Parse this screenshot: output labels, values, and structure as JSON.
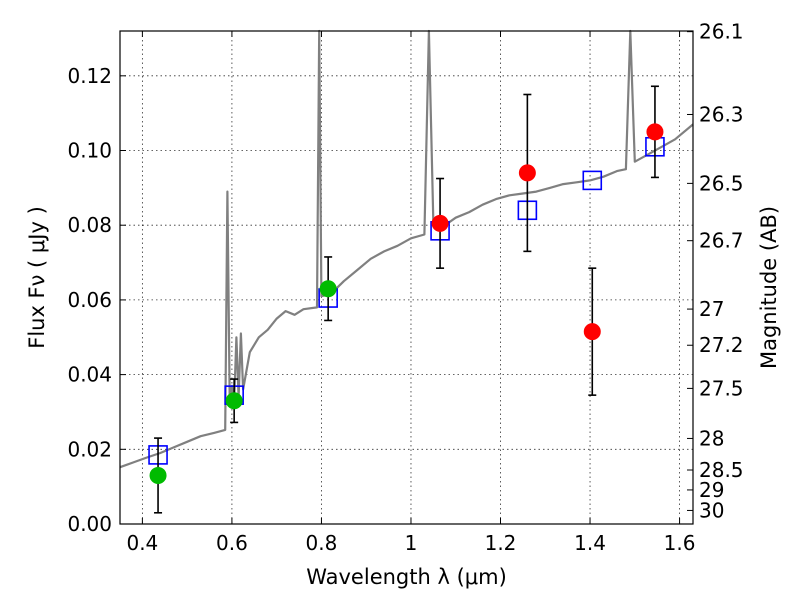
{
  "chart_data": {
    "type": "scatter",
    "title": "",
    "xlabel": "Wavelength  λ (μm)",
    "ylabel": "Flux  Fν  ( μJy )",
    "y2label": "Magnitude (AB)",
    "xlim": [
      0.35,
      1.63
    ],
    "ylim": [
      0.0,
      0.132
    ],
    "grid": true,
    "xticks": [
      0.4,
      0.6,
      0.8,
      1.0,
      1.2,
      1.4,
      1.6
    ],
    "xtick_labels": [
      "0.4",
      "0.6",
      "0.8",
      "1",
      "1.2",
      "1.4",
      "1.6"
    ],
    "yticks": [
      0.0,
      0.02,
      0.04,
      0.06,
      0.08,
      0.1,
      0.12
    ],
    "ytick_labels": [
      "0.00",
      "0.02",
      "0.04",
      "0.06",
      "0.08",
      "0.10",
      "0.12"
    ],
    "y2ticks": [
      {
        "label": "26.1",
        "mag": 26.1
      },
      {
        "label": "26.3",
        "mag": 26.3
      },
      {
        "label": "26.5",
        "mag": 26.5
      },
      {
        "label": "26.7",
        "mag": 26.7
      },
      {
        "label": "27",
        "mag": 27.0
      },
      {
        "label": "27.2",
        "mag": 27.2
      },
      {
        "label": "27.5",
        "mag": 27.5
      },
      {
        "label": "28",
        "mag": 28.0
      },
      {
        "label": "28.5",
        "mag": 28.5
      },
      {
        "label": "29",
        "mag": 29.0
      },
      {
        "label": "30",
        "mag": 30.0
      }
    ],
    "model_spectrum": {
      "color": "#808080",
      "points": [
        [
          0.35,
          0.0152
        ],
        [
          0.38,
          0.0165
        ],
        [
          0.41,
          0.0178
        ],
        [
          0.44,
          0.019
        ],
        [
          0.47,
          0.0205
        ],
        [
          0.5,
          0.022
        ],
        [
          0.53,
          0.0235
        ],
        [
          0.56,
          0.0244
        ],
        [
          0.585,
          0.0252
        ],
        [
          0.59,
          0.089
        ],
        [
          0.595,
          0.033
        ],
        [
          0.6,
          0.037
        ],
        [
          0.605,
          0.033
        ],
        [
          0.61,
          0.05
        ],
        [
          0.615,
          0.034
        ],
        [
          0.62,
          0.051
        ],
        [
          0.625,
          0.036
        ],
        [
          0.64,
          0.046
        ],
        [
          0.66,
          0.05
        ],
        [
          0.68,
          0.052
        ],
        [
          0.7,
          0.055
        ],
        [
          0.72,
          0.057
        ],
        [
          0.74,
          0.056
        ],
        [
          0.76,
          0.0575
        ],
        [
          0.79,
          0.058
        ],
        [
          0.795,
          0.132
        ],
        [
          0.8,
          0.061
        ],
        [
          0.82,
          0.0615
        ],
        [
          0.85,
          0.065
        ],
        [
          0.88,
          0.068
        ],
        [
          0.91,
          0.071
        ],
        [
          0.94,
          0.073
        ],
        [
          0.97,
          0.0745
        ],
        [
          1.0,
          0.0765
        ],
        [
          1.03,
          0.0775
        ],
        [
          1.04,
          0.132
        ],
        [
          1.05,
          0.08
        ],
        [
          1.07,
          0.0795
        ],
        [
          1.1,
          0.082
        ],
        [
          1.13,
          0.0835
        ],
        [
          1.16,
          0.0855
        ],
        [
          1.19,
          0.087
        ],
        [
          1.22,
          0.088
        ],
        [
          1.25,
          0.0885
        ],
        [
          1.28,
          0.089
        ],
        [
          1.31,
          0.09
        ],
        [
          1.34,
          0.091
        ],
        [
          1.37,
          0.0915
        ],
        [
          1.4,
          0.092
        ],
        [
          1.43,
          0.093
        ],
        [
          1.46,
          0.0945
        ],
        [
          1.48,
          0.095
        ],
        [
          1.49,
          0.132
        ],
        [
          1.5,
          0.097
        ],
        [
          1.53,
          0.099
        ],
        [
          1.56,
          0.101
        ],
        [
          1.59,
          0.103
        ],
        [
          1.63,
          0.107
        ]
      ]
    },
    "series": [
      {
        "marker": "open-square",
        "color": "#0000ff",
        "points": [
          {
            "x": 0.435,
            "y": 0.0185
          },
          {
            "x": 0.605,
            "y": 0.0345
          },
          {
            "x": 0.815,
            "y": 0.0605
          },
          {
            "x": 1.065,
            "y": 0.0785
          },
          {
            "x": 1.26,
            "y": 0.084
          },
          {
            "x": 1.405,
            "y": 0.092
          },
          {
            "x": 1.545,
            "y": 0.101
          }
        ]
      },
      {
        "marker": "filled-circle",
        "color": "#00bb00",
        "points": [
          {
            "x": 0.435,
            "y": 0.013,
            "err": 0.01
          },
          {
            "x": 0.605,
            "y": 0.033,
            "err": 0.0058
          },
          {
            "x": 0.815,
            "y": 0.063,
            "err": 0.0085
          }
        ]
      },
      {
        "marker": "filled-circle",
        "color": "#ff0000",
        "points": [
          {
            "x": 1.065,
            "y": 0.0805,
            "err": 0.012
          },
          {
            "x": 1.26,
            "y": 0.094,
            "err": 0.021
          },
          {
            "x": 1.405,
            "y": 0.0515,
            "err": 0.017
          },
          {
            "x": 1.545,
            "y": 0.105,
            "err": 0.0122
          }
        ]
      }
    ]
  }
}
